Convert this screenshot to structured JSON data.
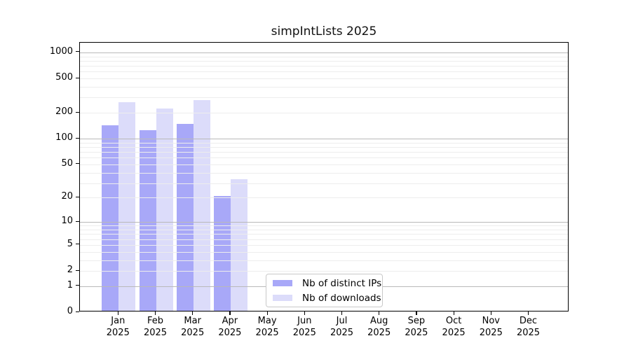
{
  "title": "simpIntLists 2025",
  "chart_data": {
    "type": "bar",
    "title": "simpIntLists 2025",
    "categories": [
      "Jan",
      "Feb",
      "Mar",
      "Apr",
      "May",
      "Jun",
      "Jul",
      "Aug",
      "Sep",
      "Oct",
      "Nov",
      "Dec"
    ],
    "x_year_label": "2025",
    "series": [
      {
        "name": "Nb of distinct IPs",
        "color": "#a8a8f8",
        "values": [
          139,
          121,
          144,
          20,
          0,
          0,
          0,
          0,
          0,
          0,
          0,
          0
        ]
      },
      {
        "name": "Nb of downloads",
        "color": "#dcdcfa",
        "values": [
          254,
          217,
          273,
          32,
          0,
          0,
          0,
          0,
          0,
          0,
          0,
          0
        ]
      }
    ],
    "y_ticks": [
      0,
      1,
      2,
      5,
      10,
      20,
      50,
      100,
      200,
      500,
      1000
    ],
    "y_scale": "log10(value+1)",
    "ylim": [
      0,
      1290
    ],
    "grid": {
      "major_values": [
        1,
        10,
        100,
        1000
      ],
      "major_color": "#b9b9b9",
      "minor_color": "#ededed",
      "on": true
    },
    "legend": {
      "position": "inside-bottom-left-of-center",
      "background": "#ffffff",
      "border_color": "#c9c9c9"
    }
  },
  "colors": {
    "background": "#ffffff",
    "axis": "#000000",
    "text": "#000000"
  }
}
